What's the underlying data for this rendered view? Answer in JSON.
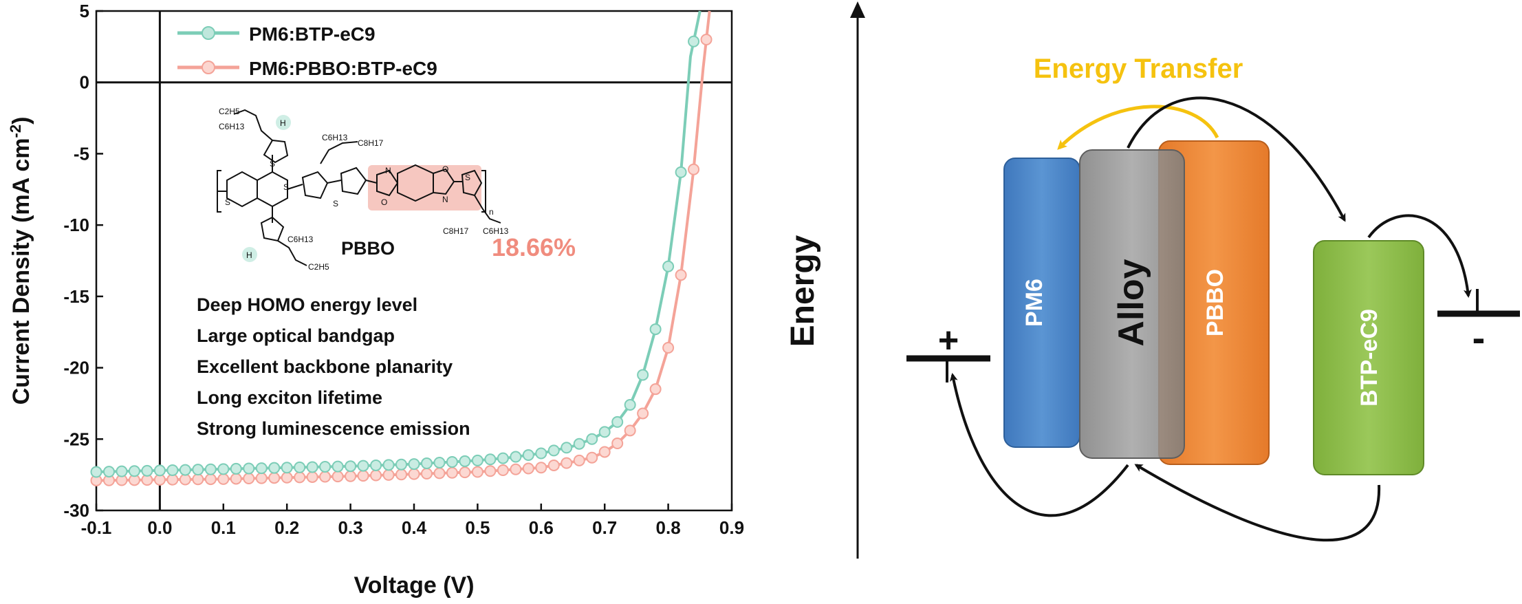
{
  "chart_data": {
    "type": "line",
    "xlabel": "Voltage (V)",
    "ylabel_main": "Current Density (mA cm",
    "ylabel_sup": "-2",
    "ylabel_end": ")",
    "xlim": [
      -0.1,
      0.9
    ],
    "ylim": [
      -30,
      5
    ],
    "xticks": [
      -0.1,
      0.0,
      0.1,
      0.2,
      0.3,
      0.4,
      0.5,
      0.6,
      0.7,
      0.8,
      0.9
    ],
    "xtick_labels": [
      "-0.1",
      "0.0",
      "0.1",
      "0.2",
      "0.3",
      "0.4",
      "0.5",
      "0.6",
      "0.7",
      "0.8",
      "0.9"
    ],
    "yticks": [
      5,
      0,
      -5,
      -10,
      -15,
      -20,
      -25,
      -30
    ],
    "ytick_labels": [
      "5",
      "0",
      "-5",
      "-10",
      "-15",
      "-20",
      "-25",
      "-30"
    ],
    "legend_position": "top-left",
    "series": [
      {
        "name": "PM6:BTP-eC9",
        "color": "#7ccdb7",
        "x": [
          -0.1,
          0.0,
          0.1,
          0.2,
          0.3,
          0.4,
          0.5,
          0.55,
          0.6,
          0.65,
          0.68,
          0.7,
          0.72,
          0.74,
          0.76,
          0.78,
          0.8,
          0.82,
          0.835,
          0.85
        ],
        "y": [
          -27.3,
          -27.2,
          -27.1,
          -27.0,
          -26.9,
          -26.75,
          -26.5,
          -26.3,
          -26.0,
          -25.5,
          -25.0,
          -24.5,
          -23.8,
          -22.6,
          -20.5,
          -17.3,
          -12.9,
          -6.3,
          1.8,
          5.0
        ]
      },
      {
        "name": "PM6:PBBO:BTP-eC9",
        "color": "#f4a398",
        "x": [
          -0.1,
          0.0,
          0.1,
          0.2,
          0.3,
          0.4,
          0.5,
          0.55,
          0.6,
          0.65,
          0.68,
          0.7,
          0.72,
          0.74,
          0.76,
          0.78,
          0.8,
          0.82,
          0.84,
          0.855,
          0.865
        ],
        "y": [
          -27.9,
          -27.85,
          -27.8,
          -27.7,
          -27.6,
          -27.45,
          -27.3,
          -27.15,
          -27.0,
          -26.6,
          -26.3,
          -25.9,
          -25.3,
          -24.4,
          -23.2,
          -21.5,
          -18.6,
          -13.5,
          -6.1,
          1.0,
          5.0
        ]
      }
    ],
    "annotation": {
      "polymer_name": "PBBO",
      "efficiency": "18.66%",
      "efficiency_color": "#f08c7e",
      "features": [
        "Deep HOMO energy level",
        "Large optical bandgap",
        "Excellent backbone planarity",
        "Long exciton lifetime",
        "Strong luminescence emission"
      ],
      "chem_labels": {
        "ethyl": "C2H5",
        "hexyl": "C6H13",
        "octyl": "C8H17",
        "hydrogen": "H",
        "sulfur": "S",
        "nitrogen": "N",
        "oxygen": "O",
        "repeat": "n"
      }
    }
  },
  "diagram": {
    "energy_axis_label": "Energy",
    "energy_transfer_label": "Energy Transfer",
    "energy_transfer_color": "#f5c20f",
    "blocks": [
      {
        "label": "PM6",
        "color": "#4f88c9"
      },
      {
        "label": "Alloy",
        "color": "#8e8e8e"
      },
      {
        "label": "PBBO",
        "color": "#ef8a3a"
      },
      {
        "label": "BTP-eC9",
        "color": "#8dbb4a"
      }
    ],
    "electrodes": {
      "positive": "+",
      "negative": "-"
    }
  }
}
